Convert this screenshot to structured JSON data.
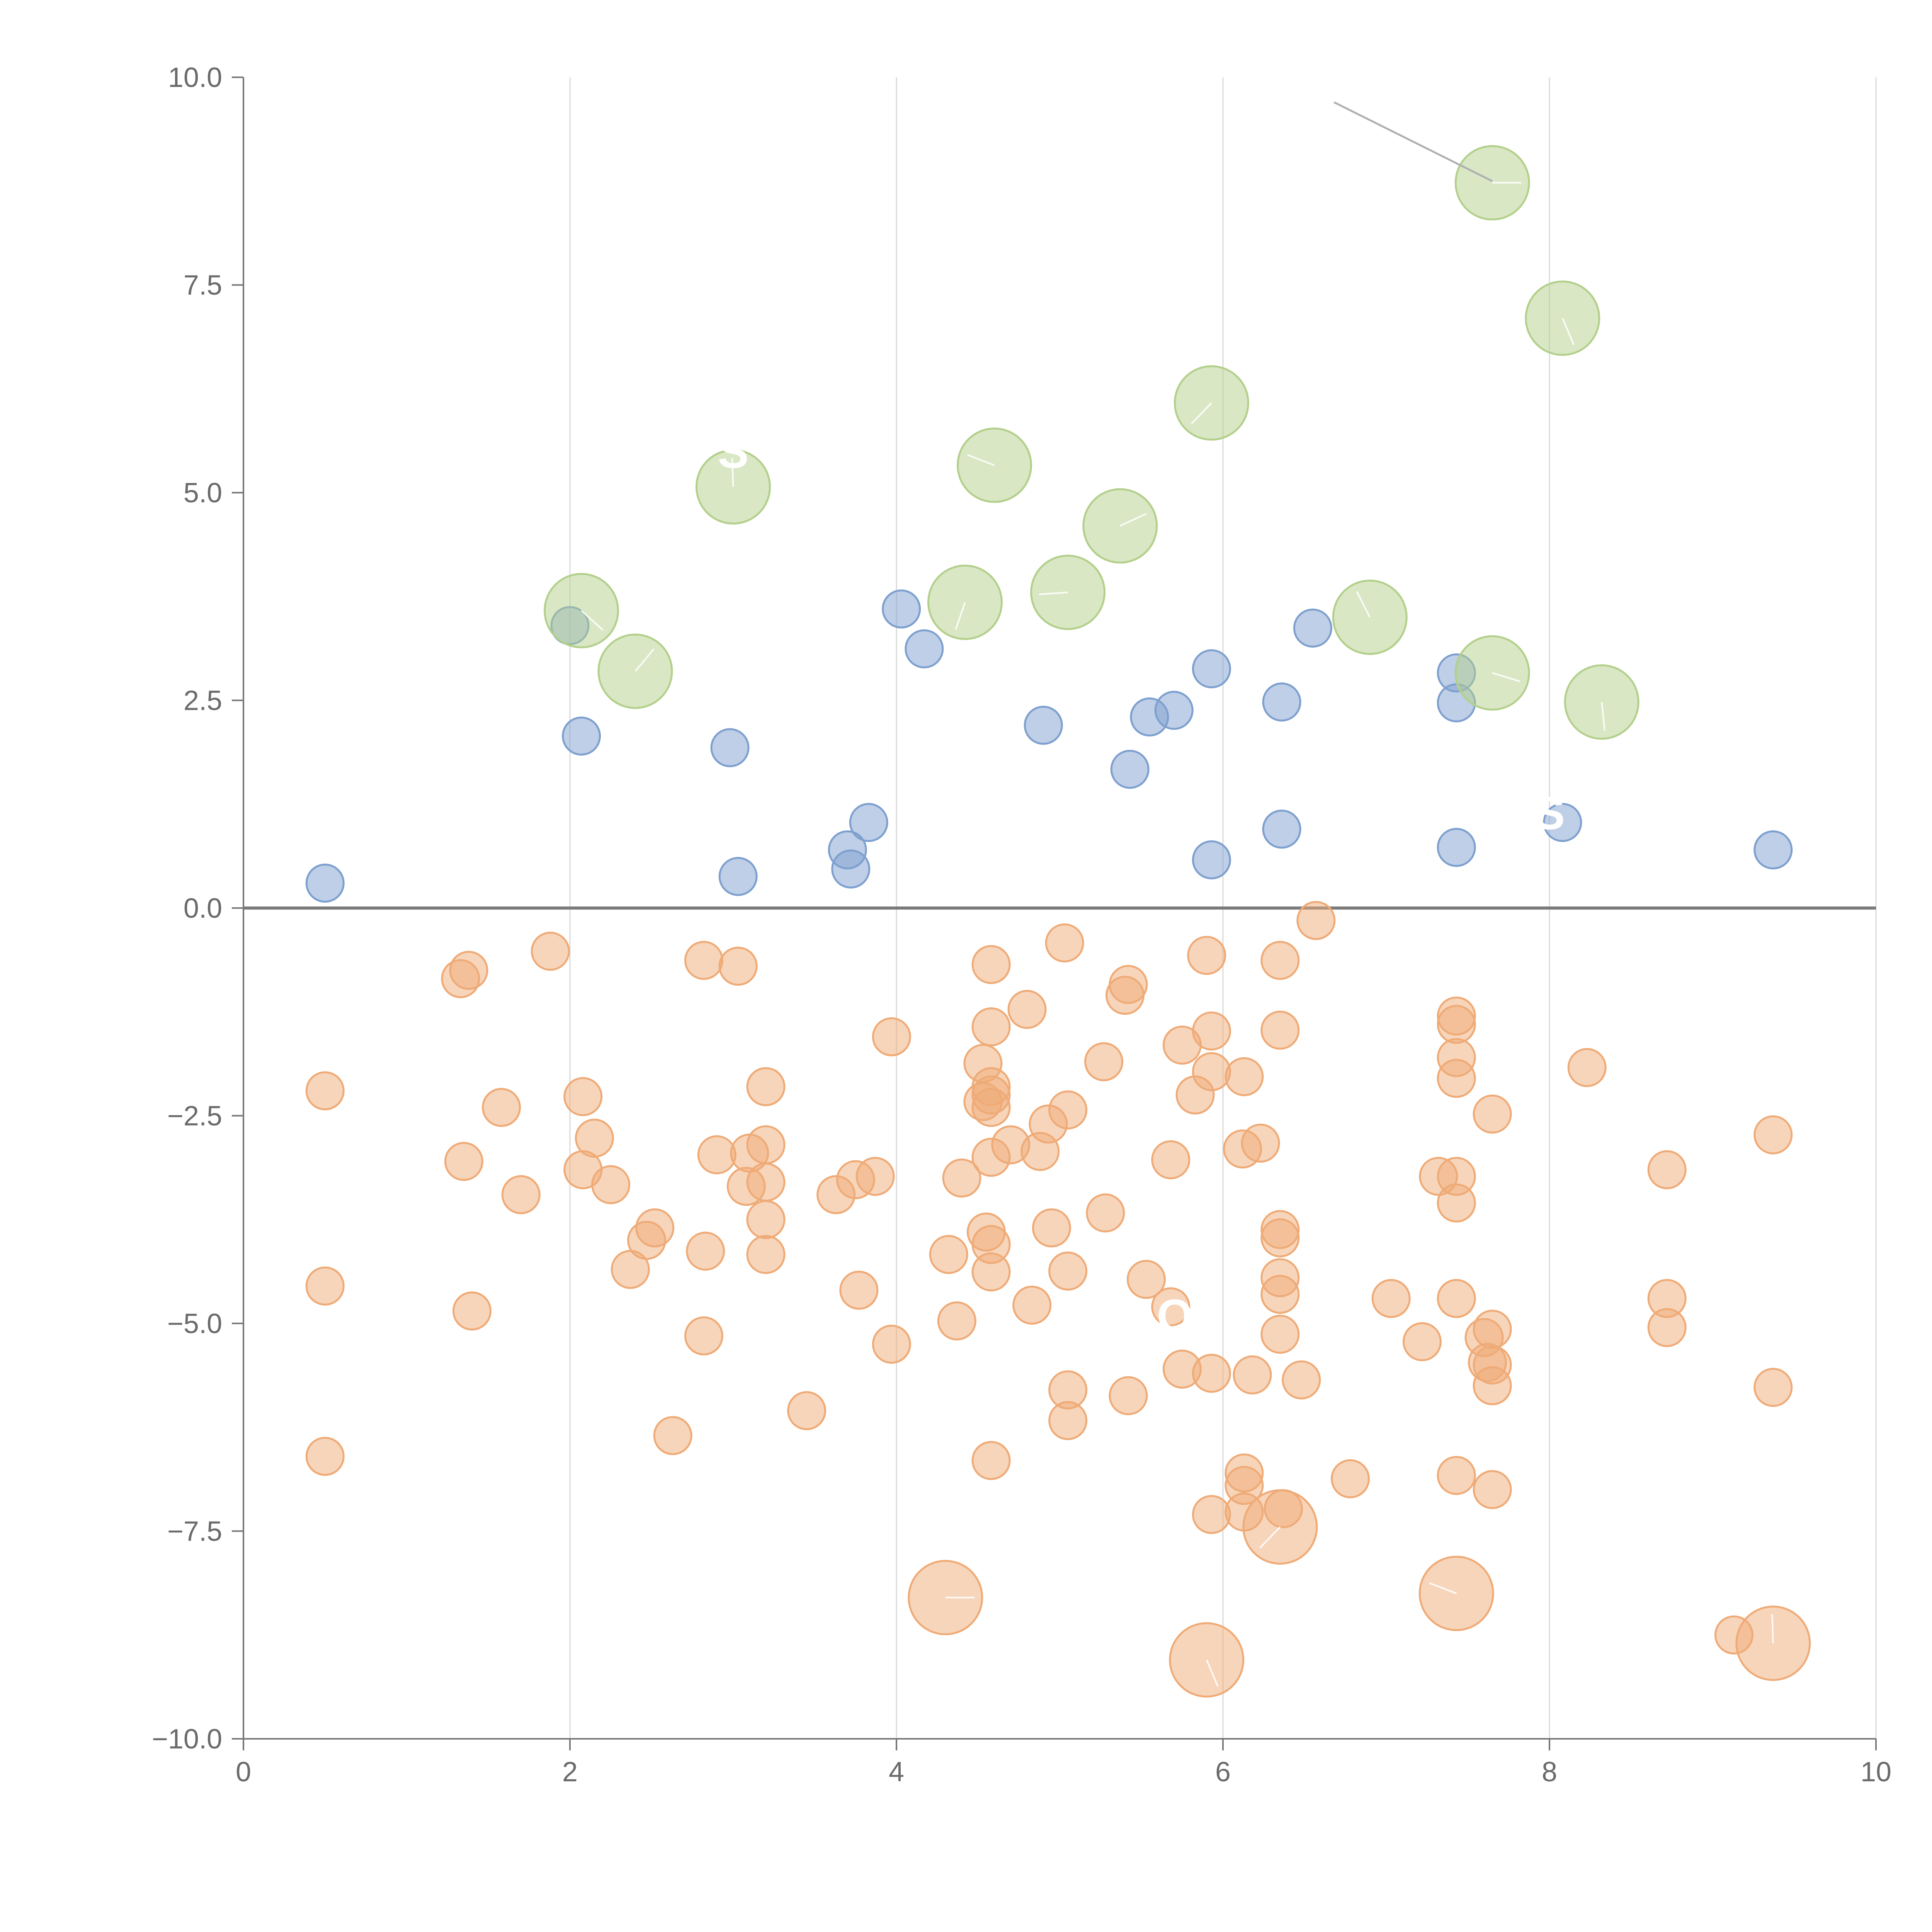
{
  "chart_data": {
    "type": "scatter",
    "title": "",
    "xlabel": "",
    "ylabel": "",
    "xlim": [
      0,
      10
    ],
    "ylim": [
      -10,
      10
    ],
    "grid": {
      "x": true,
      "y": false
    },
    "reference_line_y": 0,
    "x_ticks": [
      {
        "value": 0,
        "label": "0"
      },
      {
        "value": 2,
        "label": "2"
      },
      {
        "value": 4,
        "label": "4"
      },
      {
        "value": 6,
        "label": "6"
      },
      {
        "value": 8,
        "label": "8"
      },
      {
        "value": 10,
        "label": "10"
      }
    ],
    "y_ticks": [
      {
        "value": 10,
        "label": "10.0"
      },
      {
        "value": 7.5,
        "label": "7.5"
      },
      {
        "value": 5,
        "label": "5.0"
      },
      {
        "value": 2.5,
        "label": "2.5"
      },
      {
        "value": 0,
        "label": "0.0"
      },
      {
        "value": -2.5,
        "label": "−2.5"
      },
      {
        "value": -5,
        "label": "−5.0"
      },
      {
        "value": -7.5,
        "label": "−7.5"
      },
      {
        "value": -10,
        "label": "−10.0"
      }
    ],
    "annotations": [
      {
        "text": "S",
        "x": 3.0,
        "y": 5.3
      },
      {
        "text": "S",
        "x": 8.0,
        "y": 0.95
      },
      {
        "text": "OP",
        "x": 5.8,
        "y": -5.1
      }
    ],
    "callout": {
      "from": [
        6.68,
        9.7
      ],
      "to": [
        7.65,
        8.75
      ]
    },
    "series": [
      {
        "name": "positive-small",
        "color": "#7ea0cf",
        "size": "small",
        "points": [
          [
            0.5,
            0.3
          ],
          [
            2.0,
            3.4
          ],
          [
            2.07,
            2.07
          ],
          [
            2.98,
            1.93
          ],
          [
            3.03,
            0.38
          ],
          [
            3.7,
            0.7
          ],
          [
            3.72,
            0.47
          ],
          [
            3.83,
            1.03
          ],
          [
            4.03,
            3.6
          ],
          [
            4.17,
            3.12
          ],
          [
            4.9,
            2.2
          ],
          [
            5.43,
            1.67
          ],
          [
            5.55,
            2.3
          ],
          [
            5.7,
            2.38
          ],
          [
            5.93,
            2.88
          ],
          [
            5.93,
            0.58
          ],
          [
            6.36,
            2.48
          ],
          [
            6.36,
            0.95
          ],
          [
            6.55,
            3.37
          ],
          [
            7.43,
            2.83
          ],
          [
            7.43,
            2.47
          ],
          [
            7.43,
            0.73
          ],
          [
            8.08,
            1.03
          ],
          [
            9.37,
            0.7
          ]
        ]
      },
      {
        "name": "positive-large",
        "color": "#b3d08b",
        "size": "large",
        "points": [
          [
            7.65,
            8.73
          ],
          [
            8.08,
            7.1
          ],
          [
            5.93,
            6.08
          ],
          [
            4.6,
            5.33
          ],
          [
            3.0,
            5.07
          ],
          [
            5.37,
            4.6
          ],
          [
            2.07,
            3.58
          ],
          [
            4.42,
            3.68
          ],
          [
            5.05,
            3.8
          ],
          [
            6.9,
            3.5
          ],
          [
            2.4,
            2.85
          ],
          [
            7.65,
            2.83
          ],
          [
            8.32,
            2.48
          ]
        ]
      },
      {
        "name": "negative-small",
        "color": "#efab77",
        "size": "small",
        "points": [
          [
            0.5,
            -2.2
          ],
          [
            0.5,
            -4.55
          ],
          [
            0.5,
            -6.6
          ],
          [
            1.33,
            -0.85
          ],
          [
            1.38,
            -0.75
          ],
          [
            1.35,
            -3.05
          ],
          [
            1.4,
            -4.85
          ],
          [
            1.58,
            -2.4
          ],
          [
            1.7,
            -3.45
          ],
          [
            1.88,
            -0.52
          ],
          [
            2.08,
            -2.27
          ],
          [
            2.08,
            -3.15
          ],
          [
            2.15,
            -2.77
          ],
          [
            2.25,
            -3.33
          ],
          [
            2.37,
            -4.35
          ],
          [
            2.47,
            -4.0
          ],
          [
            2.52,
            -3.85
          ],
          [
            2.63,
            -6.35
          ],
          [
            2.82,
            -0.63
          ],
          [
            2.83,
            -4.13
          ],
          [
            2.82,
            -5.15
          ],
          [
            2.9,
            -2.97
          ],
          [
            3.03,
            -0.7
          ],
          [
            3.08,
            -3.35
          ],
          [
            3.1,
            -2.95
          ],
          [
            3.2,
            -2.15
          ],
          [
            3.2,
            -2.85
          ],
          [
            3.2,
            -3.3
          ],
          [
            3.2,
            -3.75
          ],
          [
            3.2,
            -4.17
          ],
          [
            3.45,
            -6.05
          ],
          [
            3.63,
            -3.45
          ],
          [
            3.75,
            -3.27
          ],
          [
            3.77,
            -4.6
          ],
          [
            3.87,
            -3.23
          ],
          [
            3.97,
            -1.55
          ],
          [
            3.97,
            -5.25
          ],
          [
            4.32,
            -4.17
          ],
          [
            4.37,
            -4.97
          ],
          [
            4.4,
            -3.25
          ],
          [
            4.53,
            -1.87
          ],
          [
            4.53,
            -2.33
          ],
          [
            4.55,
            -3.9
          ],
          [
            4.58,
            -0.68
          ],
          [
            4.58,
            -1.43
          ],
          [
            4.58,
            -2.15
          ],
          [
            4.58,
            -2.25
          ],
          [
            4.58,
            -2.4
          ],
          [
            4.58,
            -3.0
          ],
          [
            4.58,
            -4.05
          ],
          [
            4.58,
            -4.38
          ],
          [
            4.58,
            -6.65
          ],
          [
            4.7,
            -2.85
          ],
          [
            4.8,
            -1.22
          ],
          [
            4.83,
            -4.78
          ],
          [
            4.88,
            -2.93
          ],
          [
            4.93,
            -2.6
          ],
          [
            4.95,
            -3.85
          ],
          [
            5.03,
            -0.42
          ],
          [
            5.05,
            -2.43
          ],
          [
            5.05,
            -4.37
          ],
          [
            5.05,
            -5.8
          ],
          [
            5.05,
            -6.17
          ],
          [
            5.27,
            -1.85
          ],
          [
            5.28,
            -3.67
          ],
          [
            5.4,
            -1.05
          ],
          [
            5.42,
            -0.92
          ],
          [
            5.42,
            -5.87
          ],
          [
            5.53,
            -4.47
          ],
          [
            5.68,
            -3.03
          ],
          [
            5.68,
            -4.8
          ],
          [
            5.75,
            -1.65
          ],
          [
            5.75,
            -5.55
          ],
          [
            5.83,
            -2.25
          ],
          [
            5.9,
            -0.57
          ],
          [
            5.93,
            -1.48
          ],
          [
            5.93,
            -1.97
          ],
          [
            5.93,
            -5.6
          ],
          [
            5.93,
            -7.3
          ],
          [
            6.13,
            -2.03
          ],
          [
            6.12,
            -2.9
          ],
          [
            6.13,
            -6.8
          ],
          [
            6.13,
            -6.95
          ],
          [
            6.13,
            -7.27
          ],
          [
            6.18,
            -5.62
          ],
          [
            6.23,
            -2.83
          ],
          [
            6.35,
            -0.63
          ],
          [
            6.35,
            -1.47
          ],
          [
            6.35,
            -3.87
          ],
          [
            6.35,
            -3.97
          ],
          [
            6.35,
            -4.45
          ],
          [
            6.35,
            -4.65
          ],
          [
            6.35,
            -5.13
          ],
          [
            6.37,
            -7.23
          ],
          [
            6.48,
            -5.68
          ],
          [
            6.57,
            -0.15
          ],
          [
            6.78,
            -6.87
          ],
          [
            7.03,
            -4.7
          ],
          [
            7.22,
            -5.22
          ],
          [
            7.32,
            -3.23
          ],
          [
            7.43,
            -1.3
          ],
          [
            7.43,
            -1.4
          ],
          [
            7.43,
            -1.8
          ],
          [
            7.43,
            -2.05
          ],
          [
            7.43,
            -3.23
          ],
          [
            7.43,
            -3.55
          ],
          [
            7.43,
            -4.7
          ],
          [
            7.43,
            -6.83
          ],
          [
            7.6,
            -5.17
          ],
          [
            7.62,
            -5.47
          ],
          [
            7.65,
            -2.48
          ],
          [
            7.65,
            -5.07
          ],
          [
            7.65,
            -5.5
          ],
          [
            7.65,
            -5.75
          ],
          [
            7.65,
            -7.0
          ],
          [
            8.23,
            -1.92
          ],
          [
            8.72,
            -3.15
          ],
          [
            8.72,
            -4.7
          ],
          [
            8.72,
            -5.05
          ],
          [
            9.13,
            -8.75
          ],
          [
            9.37,
            -2.73
          ],
          [
            9.37,
            -5.77
          ]
        ]
      },
      {
        "name": "negative-large",
        "color": "#efab77",
        "size": "large",
        "points": [
          [
            4.3,
            -8.3
          ],
          [
            5.9,
            -9.05
          ],
          [
            6.35,
            -7.45
          ],
          [
            7.43,
            -8.25
          ],
          [
            9.37,
            -8.85
          ]
        ]
      }
    ]
  }
}
